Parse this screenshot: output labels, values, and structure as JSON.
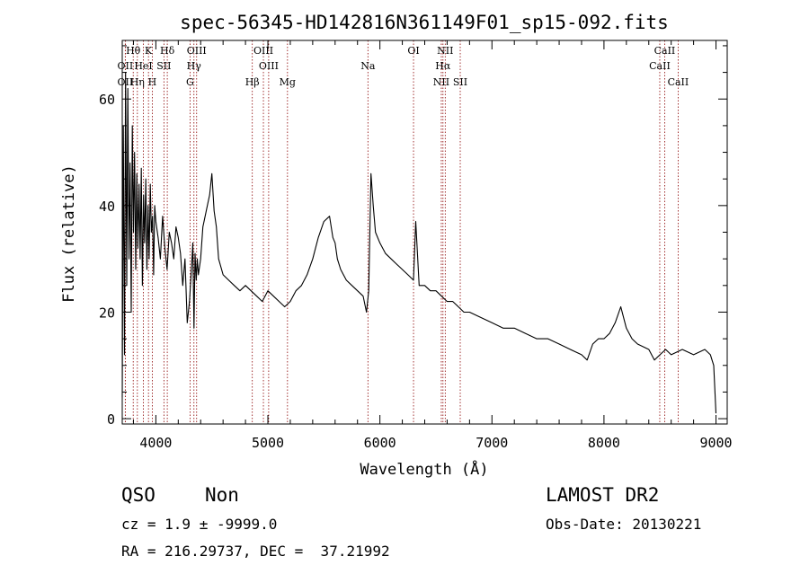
{
  "chart_data": {
    "type": "line",
    "title": "spec-56345-HD142816N361149F01_sp15-092.fits",
    "xlabel": "Wavelength (Å)",
    "ylabel": "Flux (relative)",
    "xlim": [
      3700,
      9100
    ],
    "ylim": [
      -1,
      71
    ],
    "xticks": [
      4000,
      5000,
      6000,
      7000,
      8000,
      9000
    ],
    "yticks": [
      0,
      20,
      40,
      60
    ],
    "grid": false,
    "legend": "none",
    "line_color": "#000000",
    "marker_color": "#8b0000",
    "series": [
      {
        "x": [
          3700,
          3710,
          3720,
          3730,
          3740,
          3750,
          3760,
          3770,
          3780,
          3790,
          3800,
          3810,
          3820,
          3830,
          3840,
          3850,
          3860,
          3870,
          3880,
          3890,
          3900,
          3910,
          3920,
          3930,
          3940,
          3950,
          3960,
          3970,
          3980,
          3990,
          4000,
          4020,
          4040,
          4060,
          4080,
          4100,
          4120,
          4140,
          4160,
          4180,
          4200,
          4220,
          4240,
          4260,
          4280,
          4300,
          4320,
          4330,
          4340,
          4350,
          4360,
          4370,
          4380,
          4400,
          4420,
          4440,
          4460,
          4480,
          4500,
          4520,
          4540,
          4560,
          4600,
          4650,
          4700,
          4750,
          4800,
          4850,
          4900,
          4950,
          5000,
          5050,
          5100,
          5150,
          5200,
          5250,
          5300,
          5350,
          5400,
          5450,
          5500,
          5550,
          5580,
          5600,
          5620,
          5650,
          5700,
          5750,
          5800,
          5850,
          5880,
          5900,
          5920,
          5940,
          5960,
          6000,
          6050,
          6100,
          6150,
          6200,
          6250,
          6300,
          6320,
          6350,
          6400,
          6450,
          6500,
          6550,
          6600,
          6650,
          6700,
          6750,
          6800,
          6900,
          7000,
          7100,
          7200,
          7300,
          7400,
          7500,
          7600,
          7700,
          7800,
          7850,
          7900,
          7950,
          8000,
          8050,
          8100,
          8150,
          8200,
          8250,
          8300,
          8400,
          8450,
          8500,
          8550,
          8600,
          8700,
          8800,
          8900,
          8950,
          8980,
          9000
        ],
        "y": [
          4,
          55,
          12,
          65,
          25,
          62,
          30,
          48,
          20,
          55,
          35,
          50,
          28,
          46,
          32,
          44,
          30,
          47,
          25,
          42,
          33,
          45,
          28,
          40,
          30,
          44,
          35,
          38,
          27,
          40,
          37,
          34,
          30,
          38,
          32,
          28,
          35,
          33,
          30,
          36,
          34,
          31,
          25,
          30,
          18,
          22,
          29,
          33,
          17,
          31,
          26,
          30,
          27,
          30,
          36,
          38,
          40,
          42,
          46,
          39,
          36,
          30,
          27,
          26,
          25,
          24,
          25,
          24,
          23,
          22,
          24,
          23,
          22,
          21,
          22,
          24,
          25,
          27,
          30,
          34,
          37,
          38,
          34,
          33,
          30,
          28,
          26,
          25,
          24,
          23,
          20,
          24,
          46,
          40,
          35,
          33,
          31,
          30,
          29,
          28,
          27,
          26,
          37,
          25,
          25,
          24,
          24,
          23,
          22,
          22,
          21,
          20,
          20,
          19,
          18,
          17,
          17,
          16,
          15,
          15,
          14,
          13,
          12,
          11,
          14,
          15,
          15,
          16,
          18,
          21,
          17,
          15,
          14,
          13,
          11,
          12,
          13,
          12,
          13,
          12,
          13,
          12,
          10,
          1
        ]
      }
    ],
    "spectral_lines": [
      {
        "label": "Hθ",
        "x": 3798,
        "row": 0
      },
      {
        "label": "K",
        "x": 3934,
        "row": 0
      },
      {
        "label": "Hδ",
        "x": 4102,
        "row": 0
      },
      {
        "label": "OIII",
        "x": 4364,
        "row": 0
      },
      {
        "label": "OIII",
        "x": 4960,
        "row": 0
      },
      {
        "label": "OI",
        "x": 6300,
        "row": 0
      },
      {
        "label": "NII",
        "x": 6583,
        "row": 0
      },
      {
        "label": "CaII",
        "x": 8542,
        "row": 0
      },
      {
        "label": "OII",
        "x": 3727,
        "row": 1
      },
      {
        "label": "HeI",
        "x": 3889,
        "row": 1
      },
      {
        "label": "SII",
        "x": 4072,
        "row": 1
      },
      {
        "label": "Hγ",
        "x": 4340,
        "row": 1
      },
      {
        "label": "OIII",
        "x": 5007,
        "row": 1
      },
      {
        "label": "Na",
        "x": 5893,
        "row": 1
      },
      {
        "label": "Hα",
        "x": 6563,
        "row": 1
      },
      {
        "label": "CaII",
        "x": 8498,
        "row": 1
      },
      {
        "label": "OII",
        "x": 3727,
        "row": 2
      },
      {
        "label": "Hη",
        "x": 3835,
        "row": 2
      },
      {
        "label": "H",
        "x": 3968,
        "row": 2
      },
      {
        "label": "G",
        "x": 4305,
        "row": 2
      },
      {
        "label": "Hβ",
        "x": 4861,
        "row": 2
      },
      {
        "label": "Mg",
        "x": 5175,
        "row": 2
      },
      {
        "label": "NII",
        "x": 6548,
        "row": 2
      },
      {
        "label": "SII",
        "x": 6717,
        "row": 2
      },
      {
        "label": "CaII",
        "x": 8662,
        "row": 2
      }
    ]
  },
  "info": {
    "class": "QSO",
    "subclass": "Non",
    "survey": "LAMOST DR2",
    "cz": "cz = 1.9 ± -9999.0",
    "obs_date": "Obs-Date: 20130221",
    "coords": "RA = 216.29737, DEC =  37.21992"
  }
}
